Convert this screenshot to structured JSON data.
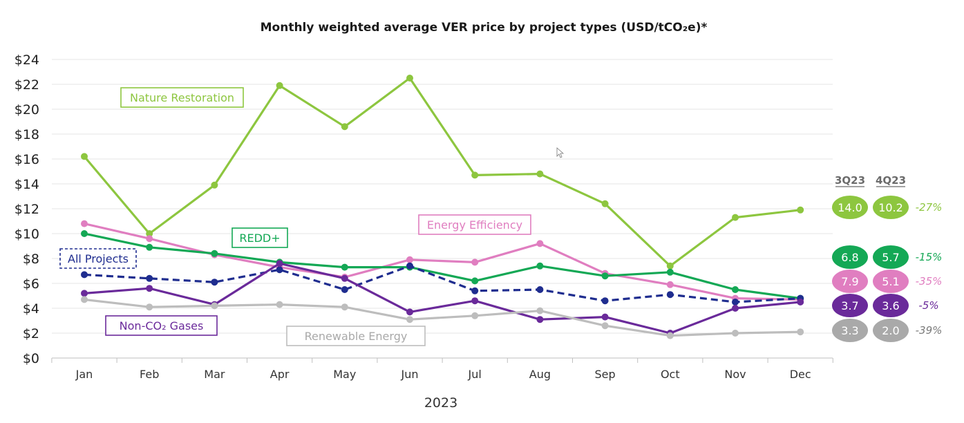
{
  "chart_data": {
    "type": "line",
    "title": "Monthly weighted average VER price by project types (USD/tCO₂e)*",
    "xlabel": "2023",
    "ylabel": "",
    "ylim": [
      0,
      24
    ],
    "yticks": [
      "$0",
      "$2",
      "$4",
      "$6",
      "$8",
      "$10",
      "$12",
      "$14",
      "$16",
      "$18",
      "$20",
      "$22",
      "$24"
    ],
    "categories": [
      "Jan",
      "Feb",
      "Mar",
      "Apr",
      "May",
      "Jun",
      "Jul",
      "Aug",
      "Sep",
      "Oct",
      "Nov",
      "Dec"
    ],
    "grid": true,
    "series": [
      {
        "key": "nature",
        "name": "Nature Restoration",
        "color": "#8dc63f",
        "dashed": false,
        "values": [
          16.2,
          10.0,
          13.9,
          21.9,
          18.6,
          22.5,
          14.7,
          14.8,
          12.4,
          7.4,
          11.3,
          11.9
        ]
      },
      {
        "key": "energy",
        "name": "Energy Efficiency",
        "color": "#e07ec0",
        "dashed": false,
        "values": [
          10.8,
          9.6,
          8.3,
          7.3,
          6.5,
          7.9,
          7.7,
          9.2,
          6.8,
          5.9,
          4.8,
          4.7
        ]
      },
      {
        "key": "redd",
        "name": "REDD+",
        "color": "#14a855",
        "dashed": false,
        "values": [
          10.0,
          8.9,
          8.4,
          7.7,
          7.3,
          7.3,
          6.2,
          7.4,
          6.6,
          6.9,
          5.5,
          4.8
        ]
      },
      {
        "key": "all",
        "name": "All Projects",
        "color": "#1f2d8f",
        "dashed": true,
        "values": [
          6.7,
          6.4,
          6.1,
          7.1,
          5.5,
          7.4,
          5.4,
          5.5,
          4.6,
          5.1,
          4.5,
          4.8
        ]
      },
      {
        "key": "nonco2",
        "name": "Non-CO₂ Gases",
        "color": "#6a2a9a",
        "dashed": false,
        "values": [
          5.2,
          5.6,
          4.3,
          7.6,
          6.4,
          3.7,
          4.6,
          3.1,
          3.3,
          2.0,
          4.0,
          4.5
        ]
      },
      {
        "key": "renew",
        "name": "Renewable Energy",
        "color": "#bdbdbd",
        "dashed": false,
        "values": [
          4.7,
          4.1,
          4.2,
          4.3,
          4.1,
          3.1,
          3.4,
          3.8,
          2.6,
          1.8,
          2.0,
          2.1
        ]
      }
    ],
    "quarter_headers": [
      "3Q23",
      "4Q23"
    ],
    "quarter_table": [
      {
        "key": "nature",
        "q3": "14.0",
        "q4": "10.2",
        "change": "-27%",
        "color": "#8dc63f",
        "change_color": "#8dc63f"
      },
      {
        "key": "redd",
        "q3": "6.8",
        "q4": "5.7",
        "change": "-15%",
        "color": "#14a855",
        "change_color": "#14a855"
      },
      {
        "key": "energy",
        "q3": "7.9",
        "q4": "5.1",
        "change": "-35%",
        "color": "#e07ec0",
        "change_color": "#e07ec0"
      },
      {
        "key": "nonco2",
        "q3": "3.7",
        "q4": "3.6",
        "change": "-5%",
        "color": "#6a2a9a",
        "change_color": "#6a2a9a"
      },
      {
        "key": "renew",
        "q3": "3.3",
        "q4": "2.0",
        "change": "-39%",
        "color": "#a9a9a9",
        "change_color": "#7a7a7a"
      }
    ]
  }
}
